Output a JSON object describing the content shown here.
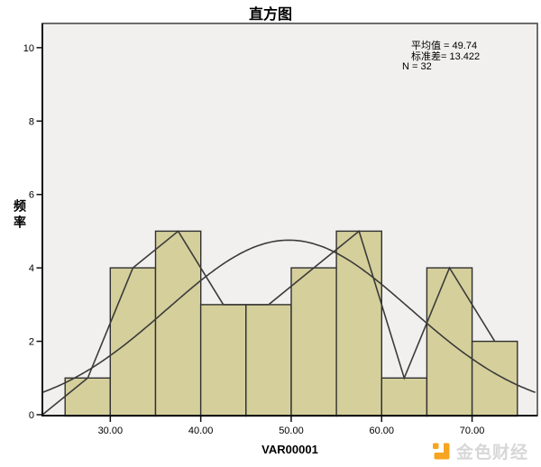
{
  "title": "直方图",
  "stats_box": {
    "mean": "平均值 = 49.74",
    "std": "标准差= 13.422",
    "n": "N = 32"
  },
  "axes": {
    "x_label": "VAR00001",
    "y_label": "频率"
  },
  "watermark": {
    "text": "金色财经",
    "logo_color": "#f7a421",
    "text_color": "#d7d7d7"
  },
  "chart_data": {
    "type": "bar",
    "subtype": "histogram",
    "title": "直方图",
    "xlabel": "VAR00001",
    "ylabel": "频率",
    "stats": {
      "mean": 49.74,
      "std_dev": 13.422,
      "n": 32
    },
    "bin_width": 5,
    "bin_edges": [
      25,
      30,
      35,
      40,
      45,
      50,
      55,
      60,
      65,
      70,
      75
    ],
    "frequencies": [
      1,
      4,
      5,
      3,
      3,
      4,
      5,
      1,
      4,
      2
    ],
    "frequency_polygon": [
      [
        22.5,
        0
      ],
      [
        27.5,
        1
      ],
      [
        32.5,
        4
      ],
      [
        37.5,
        5
      ],
      [
        42.5,
        3
      ],
      [
        47.5,
        3
      ],
      [
        52.5,
        4
      ],
      [
        57.5,
        5
      ],
      [
        62.5,
        1
      ],
      [
        67.5,
        4
      ],
      [
        72.5,
        2
      ]
    ],
    "normal_curve": {
      "mean": 49.74,
      "sd": 13.422,
      "area": 160
    },
    "xticks": {
      "values": [
        30,
        40,
        50,
        60,
        70
      ],
      "labels": [
        "30.00",
        "40.00",
        "50.00",
        "60.00",
        "70.00"
      ]
    },
    "yticks": [
      0,
      2,
      4,
      6,
      8,
      10
    ],
    "xlim": [
      22.49,
      77.22
    ],
    "ylim": [
      0,
      10.66
    ],
    "grid": false,
    "legend": false,
    "colors": {
      "bar_fill": "#d5cf9c",
      "bar_stroke": "#30302e",
      "line": "#3b3b39",
      "plot_bg": "#f1f0ef",
      "frame": "#4a4a4a",
      "axis": "#111111"
    }
  }
}
